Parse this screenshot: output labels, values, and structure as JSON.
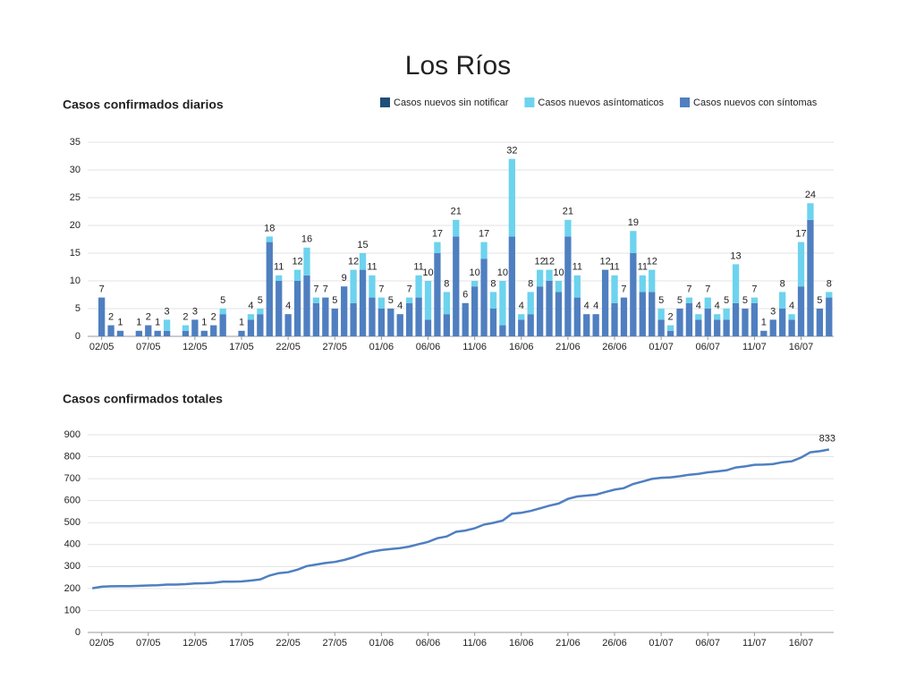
{
  "title": "Los Ríos",
  "chart_data": [
    {
      "type": "bar",
      "stacked": true,
      "title": "Casos confirmados diarios",
      "categories": [
        null,
        "02/05",
        null,
        null,
        null,
        null,
        "07/05",
        null,
        null,
        null,
        null,
        "12/05",
        null,
        null,
        null,
        null,
        "17/05",
        null,
        null,
        null,
        null,
        "22/05",
        null,
        null,
        null,
        null,
        "27/05",
        null,
        null,
        null,
        null,
        "01/06",
        null,
        null,
        null,
        null,
        "06/06",
        null,
        null,
        null,
        null,
        "11/06",
        null,
        null,
        null,
        null,
        "16/06",
        null,
        null,
        null,
        null,
        "21/06",
        null,
        null,
        null,
        null,
        "26/06",
        null,
        null,
        null,
        null,
        "01/07",
        null,
        null,
        null,
        null,
        "06/07",
        null,
        null,
        null,
        null,
        "11/07",
        null,
        null,
        null,
        null,
        "16/07",
        null,
        null,
        null
      ],
      "series": [
        {
          "name": "Casos nuevos con síntomas",
          "color": "#4f7fc0",
          "values": [
            0,
            7,
            2,
            1,
            0,
            1,
            2,
            1,
            1,
            0,
            1,
            3,
            1,
            2,
            4,
            0,
            1,
            3,
            4,
            17,
            10,
            4,
            10,
            11,
            6,
            7,
            5,
            9,
            6,
            12,
            7,
            5,
            5,
            4,
            6,
            7,
            3,
            15,
            4,
            18,
            6,
            9,
            14,
            5,
            2,
            18,
            3,
            4,
            9,
            10,
            8,
            18,
            7,
            4,
            4,
            12,
            6,
            7,
            15,
            8,
            8,
            3,
            1,
            5,
            6,
            3,
            5,
            3,
            3,
            6,
            5,
            6,
            1,
            3,
            5,
            3,
            9,
            21,
            5,
            7
          ]
        },
        {
          "name": "Casos nuevos asíntomaticos",
          "color": "#6dd3ee",
          "values": [
            0,
            0,
            0,
            0,
            0,
            0,
            0,
            0,
            2,
            0,
            1,
            0,
            0,
            0,
            1,
            0,
            0,
            1,
            1,
            1,
            1,
            0,
            2,
            5,
            1,
            0,
            0,
            0,
            6,
            3,
            4,
            2,
            0,
            0,
            1,
            4,
            7,
            2,
            4,
            3,
            0,
            1,
            3,
            3,
            8,
            14,
            1,
            4,
            3,
            2,
            2,
            3,
            4,
            0,
            0,
            0,
            5,
            0,
            4,
            3,
            4,
            2,
            1,
            0,
            1,
            1,
            2,
            1,
            2,
            7,
            0,
            1,
            0,
            0,
            3,
            1,
            8,
            3,
            0,
            1
          ]
        },
        {
          "name": "Casos nuevos sin notificar",
          "color": "#1f4e79",
          "values": [
            0,
            0,
            0,
            0,
            0,
            0,
            0,
            0,
            0,
            0,
            0,
            0,
            0,
            0,
            0,
            0,
            0,
            0,
            0,
            0,
            0,
            0,
            0,
            0,
            0,
            0,
            0,
            0,
            0,
            0,
            0,
            0,
            0,
            0,
            0,
            0,
            0,
            0,
            0,
            0,
            0,
            0,
            0,
            0,
            0,
            0,
            0,
            0,
            0,
            0,
            0,
            0,
            0,
            0,
            0,
            0,
            0,
            0,
            0,
            0,
            0,
            0,
            0,
            0,
            0,
            0,
            0,
            0,
            0,
            0,
            0,
            0,
            0,
            0,
            0,
            0,
            0,
            0,
            0,
            0
          ]
        }
      ],
      "total_labels": [
        null,
        7,
        2,
        1,
        null,
        1,
        2,
        1,
        3,
        null,
        2,
        3,
        1,
        2,
        5,
        null,
        1,
        4,
        5,
        18,
        11,
        4,
        12,
        16,
        7,
        7,
        5,
        9,
        12,
        15,
        11,
        7,
        5,
        4,
        7,
        11,
        10,
        17,
        8,
        21,
        6,
        10,
        17,
        8,
        10,
        32,
        4,
        8,
        12,
        12,
        10,
        21,
        11,
        4,
        4,
        12,
        11,
        7,
        19,
        11,
        12,
        5,
        2,
        5,
        7,
        4,
        7,
        4,
        5,
        13,
        5,
        7,
        1,
        3,
        8,
        4,
        17,
        24,
        5,
        8
      ],
      "legend_order": [
        2,
        1,
        0
      ],
      "ylim": [
        0,
        35
      ],
      "yticks": [
        0,
        5,
        10,
        15,
        20,
        25,
        30,
        35
      ],
      "grid": true
    },
    {
      "type": "line",
      "title": "Casos confirmados totales",
      "categories": [
        null,
        "02/05",
        null,
        null,
        null,
        null,
        "07/05",
        null,
        null,
        null,
        null,
        "12/05",
        null,
        null,
        null,
        null,
        "17/05",
        null,
        null,
        null,
        null,
        "22/05",
        null,
        null,
        null,
        null,
        "27/05",
        null,
        null,
        null,
        null,
        "01/06",
        null,
        null,
        null,
        null,
        "06/06",
        null,
        null,
        null,
        null,
        "11/06",
        null,
        null,
        null,
        null,
        "16/06",
        null,
        null,
        null,
        null,
        "21/06",
        null,
        null,
        null,
        null,
        "26/06",
        null,
        null,
        null,
        null,
        "01/07",
        null,
        null,
        null,
        null,
        "06/07",
        null,
        null,
        null,
        null,
        "11/07",
        null,
        null,
        null,
        null,
        "16/07",
        null,
        null,
        null
      ],
      "series": [
        {
          "name": "Casos confirmados totales",
          "color": "#4f7fc0",
          "values": [
            201,
            208,
            210,
            211,
            211,
            212,
            214,
            215,
            218,
            218,
            220,
            223,
            224,
            226,
            231,
            231,
            232,
            236,
            241,
            259,
            270,
            274,
            286,
            302,
            309,
            316,
            321,
            330,
            342,
            357,
            368,
            375,
            380,
            384,
            391,
            402,
            412,
            429,
            437,
            458,
            464,
            474,
            491,
            499,
            509,
            541,
            545,
            553,
            565,
            577,
            587,
            608,
            619,
            623,
            627,
            639,
            650,
            657,
            676,
            687,
            699,
            704,
            706,
            711,
            718,
            722,
            729,
            733,
            738,
            751,
            756,
            763,
            764,
            767,
            775,
            779,
            796,
            820,
            825,
            833
          ]
        }
      ],
      "labeled_point": 79,
      "ylim": [
        0,
        900
      ],
      "yticks": [
        0,
        100,
        200,
        300,
        400,
        500,
        600,
        700,
        800,
        900
      ],
      "grid": true
    }
  ]
}
